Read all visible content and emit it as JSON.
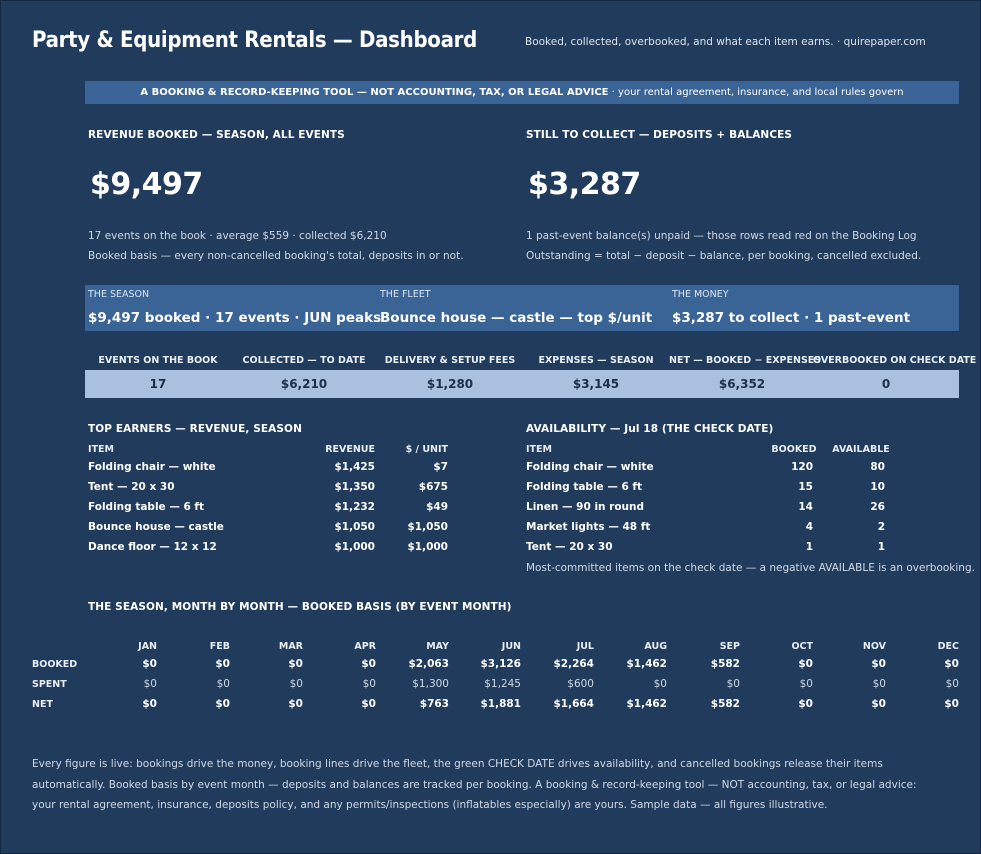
{
  "header": {
    "title": "Party & Equipment Rentals — Dashboard",
    "subtitle": "Booked, collected, overbooked, and what each item earns.  ·  quirepaper.com"
  },
  "banner": {
    "bold": "A BOOKING & RECORD-KEEPING TOOL — NOT ACCOUNTING, TAX, OR LEGAL ADVICE",
    "rest": "  ·  your rental agreement, insurance, and local rules govern"
  },
  "revenue": {
    "label": "REVENUE BOOKED — SEASON, ALL EVENTS",
    "value": "$9,497",
    "note1": "17 events on the book  ·  average $559  ·  collected $6,210",
    "note2": "Booked basis — every non-cancelled booking's total, deposits in or not."
  },
  "collect": {
    "label": "STILL TO COLLECT — DEPOSITS + BALANCES",
    "value": "$3,287",
    "note1": "1 past-event balance(s) unpaid — those rows read red on the Booking Log",
    "note2": "Outstanding = total − deposit − balance, per booking, cancelled excluded."
  },
  "band": [
    {
      "caption": "THE SEASON",
      "value": "$9,497 booked · 17 events · JUN peaks"
    },
    {
      "caption": "THE FLEET",
      "value": "Bounce house — castle — top $/unit"
    },
    {
      "caption": "THE MONEY",
      "value": "$3,287 to collect · 1 past-event"
    }
  ],
  "kpis": [
    {
      "label": "EVENTS ON THE BOOK",
      "value": "17"
    },
    {
      "label": "COLLECTED — TO DATE",
      "value": "$6,210"
    },
    {
      "label": "DELIVERY & SETUP FEES",
      "value": "$1,280"
    },
    {
      "label": "EXPENSES — SEASON",
      "value": "$3,145"
    },
    {
      "label": "NET — BOOKED − EXPENSES",
      "value": "$6,352"
    },
    {
      "label": "OVERBOOKED ON CHECK DATE",
      "value": "0"
    }
  ],
  "top_earners": {
    "title": "TOP EARNERS — REVENUE, SEASON",
    "headers": [
      "ITEM",
      "REVENUE",
      "$ / UNIT"
    ],
    "rows": [
      [
        "Folding chair — white",
        "$1,425",
        "$7"
      ],
      [
        "Tent — 20 x 30",
        "$1,350",
        "$675"
      ],
      [
        "Folding table — 6 ft",
        "$1,232",
        "$49"
      ],
      [
        "Bounce house — castle",
        "$1,050",
        "$1,050"
      ],
      [
        "Dance floor — 12 x 12",
        "$1,000",
        "$1,000"
      ]
    ]
  },
  "availability": {
    "title": "AVAILABILITY — Jul 18 (THE CHECK DATE)",
    "headers": [
      "ITEM",
      "BOOKED",
      "AVAILABLE"
    ],
    "rows": [
      [
        "Folding chair — white",
        "120",
        "80"
      ],
      [
        "Folding table — 6 ft",
        "15",
        "10"
      ],
      [
        "Linen — 90 in round",
        "14",
        "26"
      ],
      [
        "Market lights — 48 ft",
        "4",
        "2"
      ],
      [
        "Tent — 20 x 30",
        "1",
        "1"
      ]
    ],
    "note": "Most-committed items on the check date — a negative AVAILABLE is an overbooking."
  },
  "monthly": {
    "title": "THE SEASON, MONTH BY MONTH — BOOKED BASIS (BY EVENT MONTH)",
    "months": [
      "JAN",
      "FEB",
      "MAR",
      "APR",
      "MAY",
      "JUN",
      "JUL",
      "AUG",
      "SEP",
      "OCT",
      "NOV",
      "DEC"
    ],
    "rows": [
      {
        "label": "BOOKED",
        "values": [
          "$0",
          "$0",
          "$0",
          "$0",
          "$2,063",
          "$3,126",
          "$2,264",
          "$1,462",
          "$582",
          "$0",
          "$0",
          "$0"
        ]
      },
      {
        "label": "SPENT",
        "values": [
          "$0",
          "$0",
          "$0",
          "$0",
          "$1,300",
          "$1,245",
          "$600",
          "$0",
          "$0",
          "$0",
          "$0",
          "$0"
        ]
      },
      {
        "label": "NET",
        "values": [
          "$0",
          "$0",
          "$0",
          "$0",
          "$763",
          "$1,881",
          "$1,664",
          "$1,462",
          "$582",
          "$0",
          "$0",
          "$0"
        ]
      }
    ]
  },
  "footer": [
    "Every figure is live: bookings drive the money, booking lines drive the fleet, the green CHECK DATE drives availability, and cancelled bookings release their items",
    "automatically. Booked basis by event month — deposits and balances are tracked per booking. A booking & record-keeping tool — NOT accounting, tax, or legal advice:",
    "your rental agreement, insurance, deposits policy, and any permits/inspections (inflatables especially) are yours. Sample data — all figures illustrative."
  ]
}
